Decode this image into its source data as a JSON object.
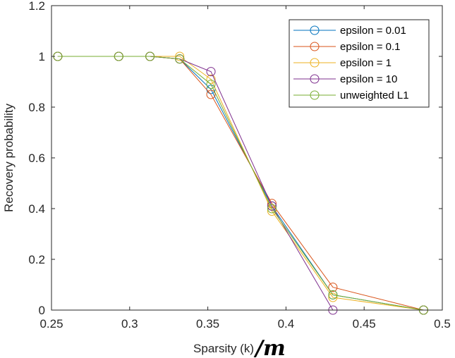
{
  "chart_data": {
    "type": "line",
    "title": "",
    "xlabel": "Sparsity (k)",
    "xlabel_suffix": "/m",
    "ylabel": "Recovery probability",
    "xlim": [
      0.25,
      0.5
    ],
    "ylim": [
      0,
      1.2
    ],
    "xticks": [
      "0.25",
      "0.3",
      "0.35",
      "0.4",
      "0.45",
      "0.5"
    ],
    "yticks": [
      "0",
      "0.2",
      "0.4",
      "0.6",
      "0.8",
      "1",
      "1.2"
    ],
    "x": [
      0.254,
      0.293,
      0.313,
      0.332,
      0.352,
      0.391,
      0.43,
      0.488
    ],
    "grid": false,
    "legend_position": "top-right",
    "marker": "open-circle",
    "series": [
      {
        "name": "epsilon = 0.01",
        "color": "#0072BD",
        "values": [
          1,
          1,
          1,
          0.99,
          0.87,
          0.41,
          0.06,
          0
        ]
      },
      {
        "name": "epsilon = 0.1",
        "color": "#D95319",
        "values": [
          1,
          1,
          1,
          0.99,
          0.85,
          0.42,
          0.09,
          0
        ]
      },
      {
        "name": "epsilon = 1",
        "color": "#EDB120",
        "values": [
          1,
          1,
          1,
          1,
          0.91,
          0.39,
          0.05,
          0
        ]
      },
      {
        "name": "epsilon = 10",
        "color": "#7E2F8E",
        "values": [
          1,
          1,
          1,
          0.99,
          0.94,
          0.41,
          0,
          0
        ]
      },
      {
        "name": "unweighted L1",
        "color": "#77AC30",
        "values": [
          1,
          1,
          1,
          0.99,
          0.89,
          0.4,
          0.06,
          0
        ]
      }
    ]
  }
}
